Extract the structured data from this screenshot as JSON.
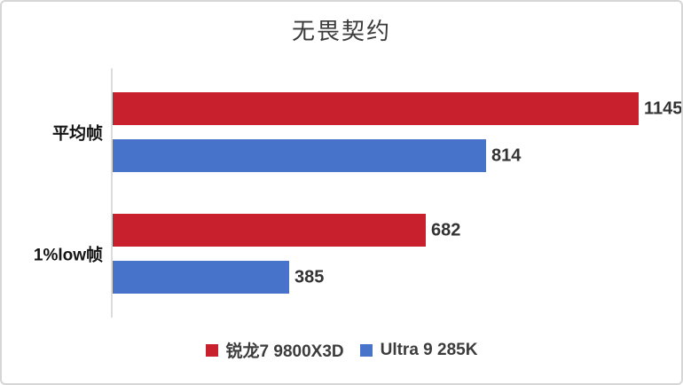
{
  "frame": {
    "background": "#ffffff",
    "border_color": "#d6d6d6"
  },
  "chart_data": {
    "type": "bar",
    "orientation": "horizontal",
    "title": "无畏契约",
    "categories": [
      "平均帧",
      "1%low帧"
    ],
    "series": [
      {
        "name": "锐龙7 9800X3D",
        "color": "#c9202e",
        "values": [
          1145,
          682
        ]
      },
      {
        "name": "Ultra 9 285K",
        "color": "#4773cb",
        "values": [
          814,
          385
        ]
      }
    ],
    "xlim": [
      0,
      1200
    ],
    "value_labels": true,
    "grid": false,
    "legend_position": "bottom",
    "axis_line_color": "#dcdcdc"
  }
}
